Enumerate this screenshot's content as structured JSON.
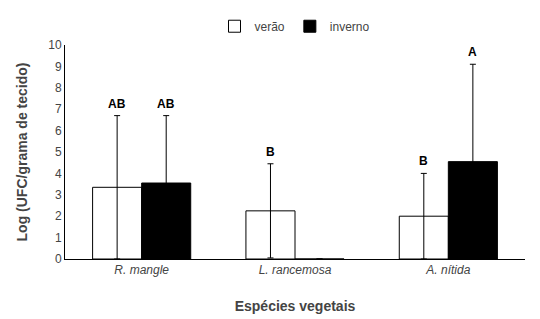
{
  "chart_data": {
    "type": "bar",
    "categories": [
      "R. mangle",
      "L. rancemosa",
      "A. nítida"
    ],
    "series": [
      {
        "name": "verão",
        "color": "white",
        "values": [
          3.35,
          2.25,
          2.0
        ],
        "errors": [
          3.35,
          2.2,
          2.0
        ]
      },
      {
        "name": "inverno",
        "color": "black",
        "values": [
          3.55,
          0.0,
          4.55
        ],
        "errors": [
          3.15,
          0.0,
          4.55
        ]
      }
    ],
    "annotations": [
      {
        "category": "R. mangle",
        "series": "verão",
        "text": "AB"
      },
      {
        "category": "L. rancemosa",
        "series": "verão",
        "text": "B"
      },
      {
        "category": "A. nítida",
        "series": "verão",
        "text": "B"
      },
      {
        "category": "R. mangle",
        "series": "inverno",
        "text": "AB"
      },
      {
        "category": "A. nítida",
        "series": "inverno",
        "text": "A"
      }
    ],
    "xlabel": "Espécies vegetais",
    "ylabel": "Log (UFC/grama de tecido)",
    "ylim": [
      0,
      10
    ],
    "yticks": [
      0,
      1,
      2,
      3,
      4,
      5,
      6,
      7,
      8,
      9,
      10
    ],
    "grid": false,
    "legend": "upper center"
  }
}
